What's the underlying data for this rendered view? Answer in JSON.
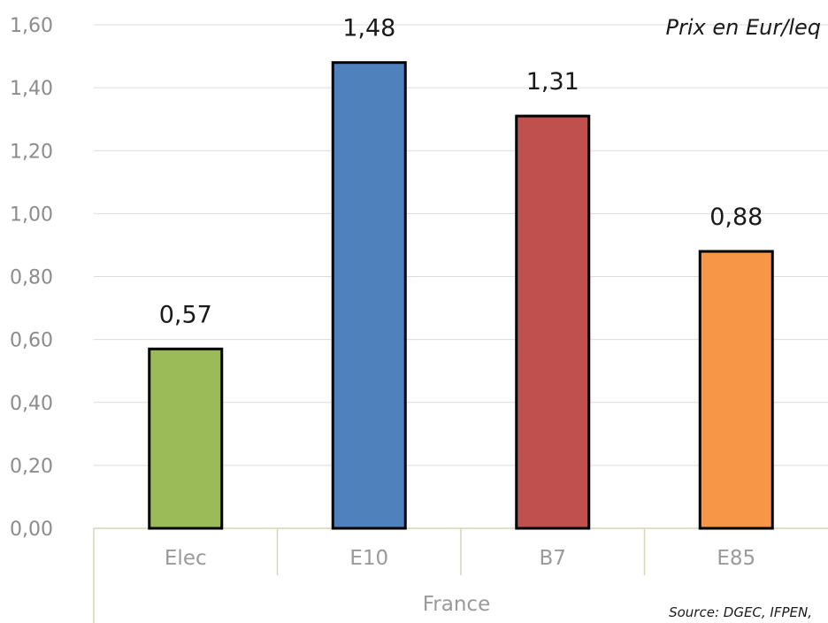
{
  "chart_data": {
    "type": "bar",
    "categories": [
      "Elec",
      "E10",
      "B7",
      "E85"
    ],
    "values": [
      0.57,
      1.48,
      1.31,
      0.88
    ],
    "value_labels": [
      "0,57",
      "1,48",
      "1,31",
      "0,88"
    ],
    "colors": [
      "#9bbb59",
      "#4f81bd",
      "#c0504d",
      "#f79646"
    ],
    "group_label": "France",
    "ylim": [
      0,
      1.6
    ],
    "yticks": [
      0,
      0.2,
      0.4,
      0.6,
      0.8,
      1.0,
      1.2,
      1.4,
      1.6
    ],
    "ytick_labels": [
      "0,00",
      "0,20",
      "0,40",
      "0,60",
      "0,80",
      "1,00",
      "1,20",
      "1,40",
      "1,60"
    ],
    "grid": true,
    "unit_note": "Prix en Eur/leq",
    "source_note": "Source: DGEC, IFPEN,"
  }
}
